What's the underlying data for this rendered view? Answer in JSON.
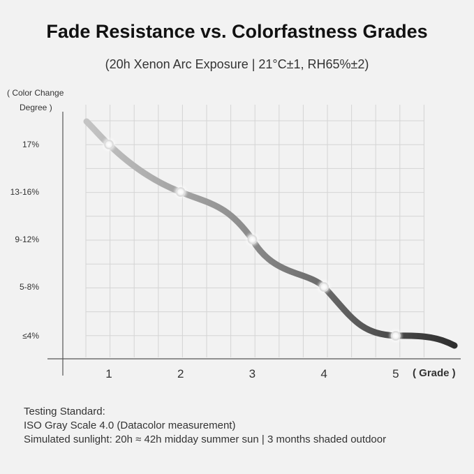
{
  "chart_data": {
    "type": "line",
    "title": "Fade Resistance vs. Colorfastness Grades",
    "subtitle": "(20h Xenon Arc Exposure | 21°C±1, RH65%±2)",
    "ylabel_line1": "( Color Change",
    "ylabel_line2": "Degree )",
    "xlabel": "( Grade )",
    "categories": [
      "17%",
      "13-16%",
      "9-12%",
      "5-8%",
      "≤4%"
    ],
    "x": [
      1,
      2,
      3,
      4,
      5
    ],
    "x_ticks": [
      "1",
      "2",
      "3",
      "4",
      "5"
    ],
    "y_ticks": [
      "17%",
      "13-16%",
      "9-12%",
      "5-8%",
      "≤4%"
    ],
    "values": [
      17,
      13,
      9,
      5,
      4
    ],
    "grid": true,
    "colors": {
      "line_light": "#b5b5b5",
      "line_dark": "#333333",
      "grid": "#d4d4d4",
      "axis": "#555555"
    }
  },
  "footer": {
    "line1": "Testing Standard:",
    "line2": "ISO Gray Scale 4.0 (Datacolor measurement)",
    "line3": "Simulated sunlight: 20h ≈ 42h midday summer sun | 3 months shaded outdoor"
  }
}
